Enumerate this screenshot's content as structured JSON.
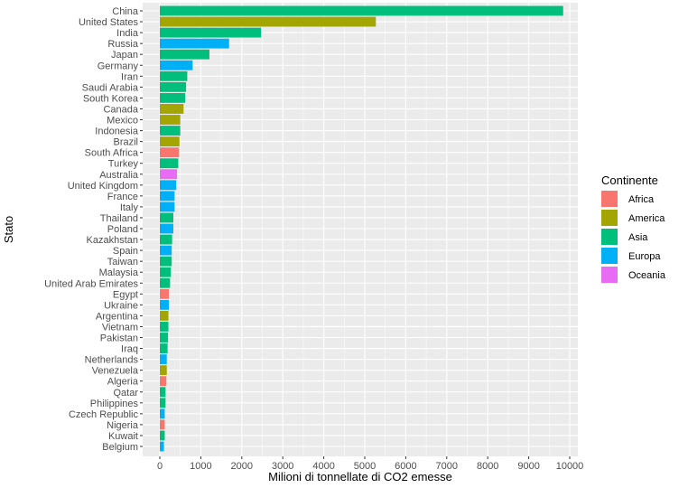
{
  "chart_data": {
    "type": "bar",
    "orientation": "horizontal",
    "xlabel": "Milioni di tonnellate di CO2 emesse",
    "ylabel": "Stato",
    "xlim": [
      0,
      10000
    ],
    "xticks": [
      0,
      1000,
      2000,
      3000,
      4000,
      5000,
      6000,
      7000,
      8000,
      9000,
      10000
    ],
    "grid": true,
    "legend_title": "Continente",
    "legend_position": "right",
    "legend": [
      {
        "name": "Africa",
        "color": "#F8766D"
      },
      {
        "name": "America",
        "color": "#A3A500"
      },
      {
        "name": "Asia",
        "color": "#00BF7D"
      },
      {
        "name": "Europa",
        "color": "#00B0F6"
      },
      {
        "name": "Oceania",
        "color": "#E76BF3"
      }
    ],
    "bars": [
      {
        "category": "China",
        "value": 9840,
        "continent": "Asia"
      },
      {
        "category": "United States",
        "value": 5270,
        "continent": "America"
      },
      {
        "category": "India",
        "value": 2470,
        "continent": "Asia"
      },
      {
        "category": "Russia",
        "value": 1690,
        "continent": "Europa"
      },
      {
        "category": "Japan",
        "value": 1210,
        "continent": "Asia"
      },
      {
        "category": "Germany",
        "value": 800,
        "continent": "Europa"
      },
      {
        "category": "Iran",
        "value": 670,
        "continent": "Asia"
      },
      {
        "category": "Saudi Arabia",
        "value": 640,
        "continent": "Asia"
      },
      {
        "category": "South Korea",
        "value": 620,
        "continent": "Asia"
      },
      {
        "category": "Canada",
        "value": 580,
        "continent": "America"
      },
      {
        "category": "Mexico",
        "value": 500,
        "continent": "America"
      },
      {
        "category": "Indonesia",
        "value": 500,
        "continent": "Asia"
      },
      {
        "category": "Brazil",
        "value": 480,
        "continent": "America"
      },
      {
        "category": "South Africa",
        "value": 470,
        "continent": "Africa"
      },
      {
        "category": "Turkey",
        "value": 450,
        "continent": "Asia"
      },
      {
        "category": "Australia",
        "value": 420,
        "continent": "Oceania"
      },
      {
        "category": "United Kingdom",
        "value": 400,
        "continent": "Europa"
      },
      {
        "category": "France",
        "value": 360,
        "continent": "Europa"
      },
      {
        "category": "Italy",
        "value": 360,
        "continent": "Europa"
      },
      {
        "category": "Thailand",
        "value": 330,
        "continent": "Asia"
      },
      {
        "category": "Poland",
        "value": 330,
        "continent": "Europa"
      },
      {
        "category": "Kazakhstan",
        "value": 300,
        "continent": "Asia"
      },
      {
        "category": "Spain",
        "value": 290,
        "continent": "Europa"
      },
      {
        "category": "Taiwan",
        "value": 290,
        "continent": "Asia"
      },
      {
        "category": "Malaysia",
        "value": 270,
        "continent": "Asia"
      },
      {
        "category": "United Arab Emirates",
        "value": 250,
        "continent": "Asia"
      },
      {
        "category": "Egypt",
        "value": 220,
        "continent": "Africa"
      },
      {
        "category": "Ukraine",
        "value": 220,
        "continent": "Europa"
      },
      {
        "category": "Argentina",
        "value": 210,
        "continent": "America"
      },
      {
        "category": "Vietnam",
        "value": 210,
        "continent": "Asia"
      },
      {
        "category": "Pakistan",
        "value": 200,
        "continent": "Asia"
      },
      {
        "category": "Iraq",
        "value": 190,
        "continent": "Asia"
      },
      {
        "category": "Netherlands",
        "value": 170,
        "continent": "Europa"
      },
      {
        "category": "Venezuela",
        "value": 170,
        "continent": "America"
      },
      {
        "category": "Algeria",
        "value": 160,
        "continent": "Africa"
      },
      {
        "category": "Qatar",
        "value": 140,
        "continent": "Asia"
      },
      {
        "category": "Philippines",
        "value": 140,
        "continent": "Asia"
      },
      {
        "category": "Czech Republic",
        "value": 120,
        "continent": "Europa"
      },
      {
        "category": "Nigeria",
        "value": 120,
        "continent": "Africa"
      },
      {
        "category": "Kuwait",
        "value": 120,
        "continent": "Asia"
      },
      {
        "category": "Belgium",
        "value": 100,
        "continent": "Europa"
      }
    ]
  }
}
